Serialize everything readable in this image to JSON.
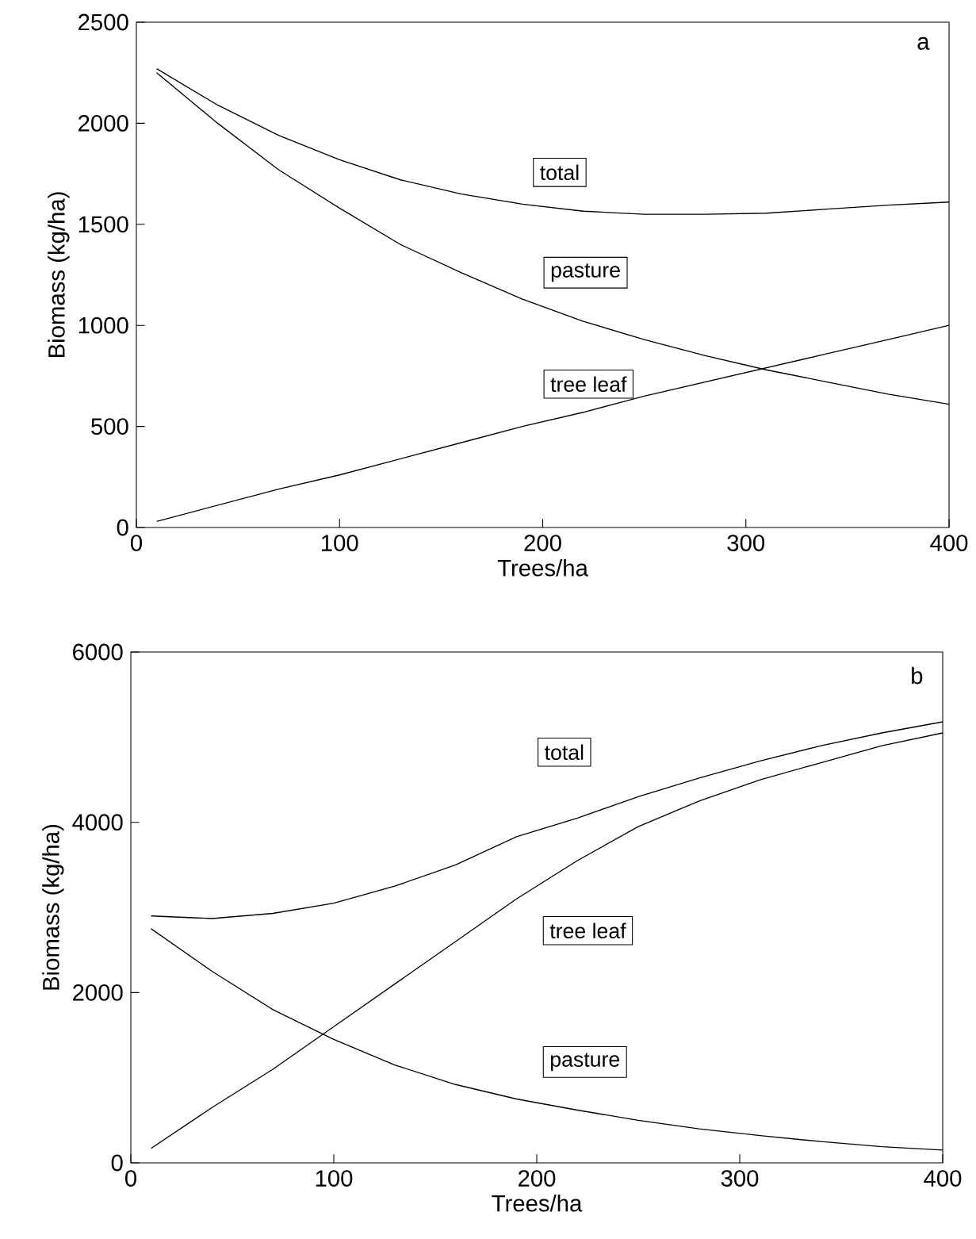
{
  "chart_data": [
    {
      "type": "line",
      "xlabel": "Trees/ha",
      "ylabel": "Biomass (kg/ha)",
      "annotations": [
        "a"
      ],
      "xlim": [
        0,
        400
      ],
      "ylim": [
        0,
        2500
      ],
      "xticks": [
        0,
        100,
        200,
        300,
        400
      ],
      "yticks": [
        0,
        500,
        1000,
        1500,
        2000,
        2500
      ],
      "x": [
        10,
        40,
        70,
        100,
        130,
        160,
        190,
        220,
        250,
        280,
        310,
        340,
        370,
        400
      ],
      "series": [
        {
          "name": "total",
          "color": "#000000",
          "values": [
            2270,
            2090,
            1940,
            1820,
            1720,
            1650,
            1600,
            1565,
            1550,
            1550,
            1555,
            1575,
            1595,
            1610
          ]
        },
        {
          "name": "pasture",
          "color": "#000000",
          "values": [
            2250,
            2000,
            1770,
            1580,
            1400,
            1260,
            1130,
            1020,
            930,
            850,
            780,
            720,
            660,
            610
          ]
        },
        {
          "name": "tree leaf",
          "color": "#000000",
          "values": [
            30,
            110,
            190,
            260,
            340,
            420,
            500,
            570,
            650,
            720,
            790,
            860,
            930,
            1000
          ]
        }
      ]
    },
    {
      "type": "line",
      "xlabel": "Trees/ha",
      "ylabel": "Biomass (kg/ha)",
      "annotations": [
        "b"
      ],
      "xlim": [
        0,
        400
      ],
      "ylim": [
        0,
        6000
      ],
      "xticks": [
        0,
        100,
        200,
        300,
        400
      ],
      "yticks": [
        0,
        2000,
        4000,
        6000
      ],
      "x": [
        10,
        40,
        70,
        100,
        130,
        160,
        190,
        220,
        250,
        280,
        310,
        340,
        370,
        400
      ],
      "series": [
        {
          "name": "total",
          "color": "#000000",
          "values": [
            2900,
            2870,
            2930,
            3050,
            3250,
            3500,
            3830,
            4050,
            4300,
            4520,
            4720,
            4900,
            5050,
            5180
          ]
        },
        {
          "name": "tree leaf",
          "color": "#000000",
          "values": [
            170,
            650,
            1100,
            1600,
            2100,
            2600,
            3100,
            3550,
            3950,
            4250,
            4500,
            4700,
            4900,
            5050
          ]
        },
        {
          "name": "pasture",
          "color": "#000000",
          "values": [
            2750,
            2250,
            1800,
            1450,
            1150,
            920,
            750,
            620,
            500,
            400,
            320,
            250,
            190,
            150
          ]
        }
      ]
    }
  ]
}
